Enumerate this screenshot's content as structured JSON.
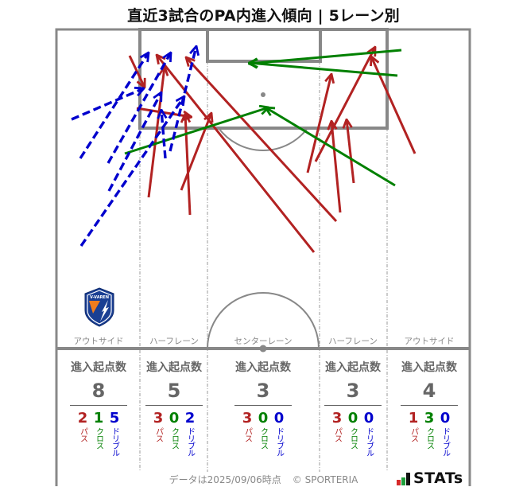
{
  "title": "直近3試合のPA内進入傾向 | 5レーン別",
  "colors": {
    "pass": "#b22222",
    "cross": "#008000",
    "dribble": "#0000cd",
    "pitch_line": "#888888",
    "lane_line": "#999999",
    "stat_text": "#666666"
  },
  "lanes": [
    {
      "label": "アウトサイド",
      "stat_title": "進入起点数",
      "total": "8",
      "counts": [
        {
          "type": "pass",
          "value": "2",
          "label": "パス"
        },
        {
          "type": "cross",
          "value": "1",
          "label": "クロス"
        },
        {
          "type": "dribble",
          "value": "5",
          "label": "ドリブル"
        }
      ]
    },
    {
      "label": "ハーフレーン",
      "stat_title": "進入起点数",
      "total": "5",
      "counts": [
        {
          "type": "pass",
          "value": "3",
          "label": "パス"
        },
        {
          "type": "cross",
          "value": "0",
          "label": "クロス"
        },
        {
          "type": "dribble",
          "value": "2",
          "label": "ドリブル"
        }
      ]
    },
    {
      "label": "センターレーン",
      "stat_title": "進入起点数",
      "total": "3",
      "counts": [
        {
          "type": "pass",
          "value": "3",
          "label": "パス"
        },
        {
          "type": "cross",
          "value": "0",
          "label": "クロス"
        },
        {
          "type": "dribble",
          "value": "0",
          "label": "ドリブル"
        }
      ]
    },
    {
      "label": "ハーフレーン",
      "stat_title": "進入起点数",
      "total": "3",
      "counts": [
        {
          "type": "pass",
          "value": "3",
          "label": "パス"
        },
        {
          "type": "cross",
          "value": "0",
          "label": "クロス"
        },
        {
          "type": "dribble",
          "value": "0",
          "label": "ドリブル"
        }
      ]
    },
    {
      "label": "アウトサイド",
      "stat_title": "進入起点数",
      "total": "4",
      "counts": [
        {
          "type": "pass",
          "value": "1",
          "label": "パス"
        },
        {
          "type": "cross",
          "value": "3",
          "label": "クロス"
        },
        {
          "type": "dribble",
          "value": "0",
          "label": "ドリブル"
        }
      ]
    }
  ],
  "arrows": [
    {
      "type": "pass",
      "from": [
        163,
        70
      ],
      "to": [
        182,
        110
      ]
    },
    {
      "type": "pass",
      "from": [
        172,
        136
      ],
      "to": [
        241,
        147
      ]
    },
    {
      "type": "pass",
      "from": [
        187,
        248
      ],
      "to": [
        207,
        84
      ]
    },
    {
      "type": "pass",
      "from": [
        239,
        270
      ],
      "to": [
        233,
        143
      ]
    },
    {
      "type": "pass",
      "from": [
        228,
        239
      ],
      "to": [
        266,
        142
      ]
    },
    {
      "type": "pass",
      "from": [
        395,
        317
      ],
      "to": [
        197,
        69
      ]
    },
    {
      "type": "pass",
      "from": [
        423,
        278
      ],
      "to": [
        234,
        72
      ]
    },
    {
      "type": "pass",
      "from": [
        387,
        217
      ],
      "to": [
        417,
        93
      ]
    },
    {
      "type": "pass",
      "from": [
        397,
        203
      ],
      "to": [
        472,
        59
      ]
    },
    {
      "type": "pass",
      "from": [
        428,
        267
      ],
      "to": [
        417,
        152
      ]
    },
    {
      "type": "pass",
      "from": [
        445,
        230
      ],
      "to": [
        436,
        150
      ]
    },
    {
      "type": "pass",
      "from": [
        522,
        193
      ],
      "to": [
        467,
        71
      ]
    },
    {
      "type": "cross",
      "from": [
        157,
        193
      ],
      "to": [
        338,
        135
      ]
    },
    {
      "type": "cross",
      "from": [
        497,
        233
      ],
      "to": [
        334,
        135
      ]
    },
    {
      "type": "cross",
      "from": [
        505,
        63
      ],
      "to": [
        313,
        80
      ]
    },
    {
      "type": "cross",
      "from": [
        500,
        95
      ],
      "to": [
        313,
        79
      ]
    },
    {
      "type": "dribble",
      "from": [
        90,
        150
      ],
      "to": [
        181,
        111
      ]
    },
    {
      "type": "dribble",
      "from": [
        101,
        199
      ],
      "to": [
        187,
        66
      ]
    },
    {
      "type": "dribble",
      "from": [
        136,
        205
      ],
      "to": [
        215,
        66
      ]
    },
    {
      "type": "dribble",
      "from": [
        137,
        240
      ],
      "to": [
        203,
        116
      ]
    },
    {
      "type": "dribble",
      "from": [
        102,
        309
      ],
      "to": [
        232,
        121
      ]
    },
    {
      "type": "dribble",
      "from": [
        208,
        199
      ],
      "to": [
        203,
        138
      ]
    },
    {
      "type": "dribble",
      "from": [
        214,
        190
      ],
      "to": [
        247,
        58
      ]
    }
  ],
  "team_logo": {
    "text": "V-VAREN"
  },
  "footer": {
    "data_date": "データは2025/09/06時点",
    "copyright": "© SPORTERIA"
  },
  "brand": {
    "name": "STATs"
  },
  "chart_data": {
    "type": "table",
    "title": "直近3試合のPA内進入傾向 | 5レーン別",
    "categories": [
      "アウトサイド",
      "ハーフレーン",
      "センターレーン",
      "ハーフレーン",
      "アウトサイド"
    ],
    "series": [
      {
        "name": "進入起点数",
        "values": [
          8,
          5,
          3,
          3,
          4
        ]
      },
      {
        "name": "パス",
        "values": [
          2,
          3,
          3,
          3,
          1
        ]
      },
      {
        "name": "クロス",
        "values": [
          1,
          0,
          0,
          0,
          3
        ]
      },
      {
        "name": "ドリブル",
        "values": [
          5,
          2,
          0,
          0,
          0
        ]
      }
    ],
    "legend": [
      "パス (red, solid)",
      "クロス (green, solid)",
      "ドリブル (blue, dashed)"
    ]
  }
}
